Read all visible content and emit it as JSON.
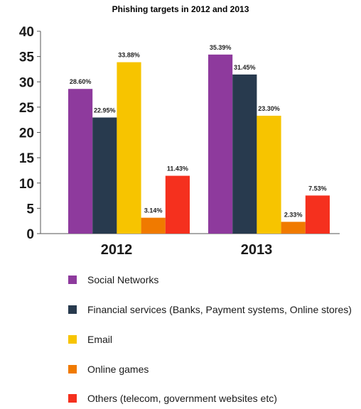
{
  "chart_data": {
    "type": "bar",
    "title": "Phishing targets in 2012 and 2013",
    "xlabel": "",
    "ylabel": "",
    "categories": [
      "2012",
      "2013"
    ],
    "ylim": [
      0,
      40
    ],
    "yticks": [
      0,
      5,
      10,
      15,
      20,
      25,
      30,
      35,
      40
    ],
    "grid": false,
    "legend_position": "bottom",
    "series": [
      {
        "name": "Social Networks",
        "color": "#8e3a9d",
        "values": [
          28.6,
          35.39
        ],
        "labels": [
          "28.60%",
          "35.39%"
        ]
      },
      {
        "name": "Financial services (Banks, Payment systems, Online stores)",
        "color": "#283a4e",
        "values": [
          22.95,
          31.45
        ],
        "labels": [
          "22.95%",
          "31.45%"
        ]
      },
      {
        "name": "Email",
        "color": "#f7c400",
        "values": [
          33.88,
          23.3
        ],
        "labels": [
          "33.88%",
          "23.30%"
        ]
      },
      {
        "name": "Online games",
        "color": "#f07a00",
        "values": [
          3.14,
          2.33
        ],
        "labels": [
          "3.14%",
          "2.33%"
        ]
      },
      {
        "name": "Others (telecom, government websites etc)",
        "color": "#f5301e",
        "values": [
          11.43,
          7.53
        ],
        "labels": [
          "11.43%",
          "7.53%"
        ]
      }
    ]
  }
}
